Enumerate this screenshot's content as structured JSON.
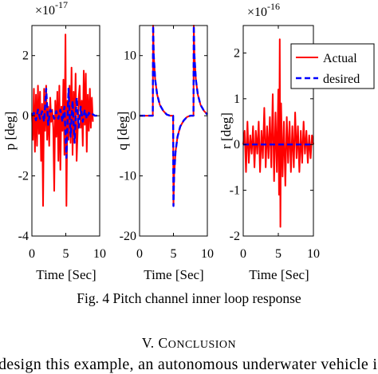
{
  "caption": "Fig. 4 Pitch channel inner loop response",
  "section_heading": {
    "number": "V.",
    "first_letter": "C",
    "rest": "ONCLUSION"
  },
  "body_fragment": "design this example, an autonomous underwater vehicle is",
  "colors": {
    "actual": "#ff0000",
    "desired": "#0000ff",
    "axes": "#000000"
  },
  "chart_data": [
    {
      "type": "line",
      "xlabel": "Time  [Sec]",
      "ylabel": "p [deg]",
      "exponent_label": "×10",
      "exponent_power": "-17",
      "xlim": [
        0,
        10
      ],
      "ylim": [
        -4,
        3
      ],
      "xticks": [
        0,
        5,
        10
      ],
      "yticks": [
        -4,
        -2,
        0,
        2
      ],
      "ytick_labels": [
        "-4",
        "-2",
        "0",
        "2"
      ],
      "grid": false,
      "series": [
        {
          "name": "Actual",
          "color": "#ff0000",
          "style": "solid",
          "x": [
            0,
            0.15,
            0.3,
            0.45,
            0.6,
            0.75,
            0.9,
            1.05,
            1.2,
            1.35,
            1.5,
            1.65,
            1.8,
            1.95,
            2.1,
            2.25,
            2.4,
            2.55,
            2.7,
            2.85,
            3.0,
            3.15,
            3.3,
            3.45,
            3.6,
            3.75,
            3.9,
            4.05,
            4.2,
            4.35,
            4.5,
            4.65,
            4.8,
            4.95,
            5.1,
            5.25,
            5.4,
            5.55,
            5.7,
            5.85,
            6.0,
            6.15,
            6.3,
            6.45,
            6.6,
            6.75,
            6.9,
            7.05,
            7.2,
            7.35,
            7.5,
            7.65,
            7.8,
            7.95,
            8.1,
            8.25,
            8.4,
            8.55,
            8.7,
            8.85,
            9.0
          ],
          "y": [
            0.1,
            -0.8,
            0.9,
            -1.2,
            0.7,
            -1.0,
            1.0,
            -0.6,
            0.8,
            -1.5,
            0.4,
            -3.0,
            0.9,
            -0.5,
            1.0,
            -0.8,
            0.3,
            -1.0,
            0.6,
            -0.2,
            0.2,
            -0.4,
            -2.5,
            0.5,
            -0.7,
            0.8,
            -1.5,
            1.0,
            -1.8,
            0.3,
            -0.5,
            1.2,
            -1.3,
            2.7,
            -3.0,
            0.5,
            -0.8,
            1.0,
            -0.9,
            1.6,
            -1.3,
            0.8,
            -0.7,
            1.4,
            -1.5,
            -0.5,
            0.6,
            1.0,
            -0.4,
            0.5,
            -1.0,
            1.5,
            -0.3,
            1.4,
            -1.2,
            0.7,
            -0.5,
            0.9,
            -0.4,
            0.6,
            -0.2
          ]
        },
        {
          "name": "desired",
          "color": "#0000ff",
          "style": "dashed",
          "x": [
            0,
            0.3,
            0.6,
            0.9,
            1.2,
            1.5,
            1.8,
            2.1,
            2.4,
            2.7,
            3.0,
            3.3,
            3.6,
            3.9,
            4.2,
            4.5,
            4.8,
            5.1,
            5.4,
            5.7,
            6.0,
            6.3,
            6.6,
            6.9,
            7.2,
            7.5,
            7.8,
            8.1,
            8.4,
            8.7,
            9.0,
            9.3,
            9.6,
            9.9
          ],
          "y": [
            0,
            0.1,
            -0.15,
            0.2,
            -0.1,
            0.15,
            -0.2,
            0.9,
            -0.3,
            0.2,
            0.1,
            -0.1,
            0.15,
            -0.1,
            0.2,
            -0.2,
            0.3,
            -1.4,
            0.9,
            -0.7,
            0.5,
            -0.9,
            0.6,
            -0.4,
            0.3,
            -0.2,
            0.2,
            -0.1,
            0.1,
            0,
            0.05,
            0,
            0,
            0
          ]
        }
      ]
    },
    {
      "type": "line",
      "xlabel": "Time  [Sec]",
      "ylabel": "q [deg]",
      "xlim": [
        0,
        10
      ],
      "ylim": [
        -20,
        15
      ],
      "xticks": [
        0,
        5,
        10
      ],
      "yticks": [
        -20,
        -10,
        0,
        10
      ],
      "ytick_labels": [
        "-20",
        "-10",
        "0",
        "10"
      ],
      "grid": false,
      "series": [
        {
          "name": "Actual",
          "color": "#ff0000",
          "style": "solid",
          "x": [
            0,
            1.95,
            2.0,
            2.1,
            2.3,
            2.6,
            3.0,
            3.5,
            4.0,
            4.5,
            4.95,
            5.0,
            5.1,
            5.3,
            5.6,
            6.0,
            6.5,
            7.0,
            7.5,
            7.95,
            8.0,
            8.1,
            8.3,
            8.6,
            9.0,
            9.5,
            10
          ],
          "y": [
            0,
            0,
            15,
            10,
            6,
            3.5,
            1.8,
            0.8,
            0.2,
            0,
            0,
            -15,
            -10,
            -6,
            -3.5,
            -1.8,
            -0.8,
            -0.2,
            0,
            0,
            15,
            10,
            6,
            3.5,
            1.8,
            0.8,
            0.2
          ]
        },
        {
          "name": "desired",
          "color": "#0000ff",
          "style": "dashed",
          "x": [
            0,
            1.95,
            2.0,
            2.1,
            2.3,
            2.6,
            3.0,
            3.5,
            4.0,
            4.5,
            4.95,
            5.0,
            5.1,
            5.3,
            5.6,
            6.0,
            6.5,
            7.0,
            7.5,
            7.95,
            8.0,
            8.1,
            8.3,
            8.6,
            9.0,
            9.5,
            10
          ],
          "y": [
            0,
            0,
            15,
            10,
            6,
            3.5,
            1.8,
            0.8,
            0.2,
            0,
            0,
            -15,
            -10,
            -6,
            -3.5,
            -1.8,
            -0.8,
            -0.2,
            0,
            0,
            15,
            10,
            6,
            3.5,
            1.8,
            0.8,
            0.2
          ]
        }
      ]
    },
    {
      "type": "line",
      "xlabel": "Time  [Sec]",
      "ylabel": "r [deg]",
      "exponent_label": "×10",
      "exponent_power": "-16",
      "xlim": [
        0,
        10
      ],
      "ylim": [
        -2,
        2.6
      ],
      "xticks": [
        0,
        5,
        10
      ],
      "yticks": [
        -2,
        -1,
        0,
        1,
        2
      ],
      "ytick_labels": [
        "-2",
        "-1",
        "0",
        "1",
        "2"
      ],
      "grid": false,
      "legend": {
        "position": "top-right",
        "entries": [
          "Actual",
          "desired"
        ]
      },
      "series": [
        {
          "name": "Actual",
          "color": "#ff0000",
          "style": "solid",
          "x": [
            0,
            0.2,
            0.4,
            0.6,
            0.8,
            1.0,
            1.2,
            1.4,
            1.6,
            1.8,
            2.0,
            2.2,
            2.4,
            2.6,
            2.8,
            3.0,
            3.2,
            3.4,
            3.6,
            3.8,
            4.0,
            4.2,
            4.4,
            4.6,
            4.8,
            5.0,
            5.1,
            5.2,
            5.3,
            5.4,
            5.6,
            5.8,
            6.0,
            6.2,
            6.4,
            6.6,
            6.8,
            7.0,
            7.2,
            7.4,
            7.6,
            7.8,
            8.0,
            8.2,
            8.4,
            8.6,
            8.8,
            9.0,
            9.2,
            9.4,
            9.6,
            9.8,
            10
          ],
          "y": [
            0,
            0.3,
            -0.6,
            0.5,
            -0.4,
            0.2,
            -0.2,
            0.4,
            -0.5,
            0.3,
            -0.2,
            0.5,
            -0.6,
            0.3,
            -0.3,
            0.8,
            -0.5,
            0.4,
            -0.3,
            0.6,
            -0.5,
            1.1,
            -0.8,
            0.7,
            -0.6,
            1.2,
            -1.1,
            2.3,
            -1.8,
            0.9,
            -0.7,
            0.5,
            -0.9,
            0.6,
            -0.4,
            0.5,
            -0.6,
            0.4,
            -0.5,
            0.7,
            -0.3,
            0.4,
            -0.6,
            0.3,
            -0.4,
            0.5,
            -0.2,
            0.3,
            -0.4,
            0.2,
            -0.3,
            0.2,
            0
          ]
        },
        {
          "name": "desired",
          "color": "#0000ff",
          "style": "dashed",
          "x": [
            0,
            10
          ],
          "y": [
            0,
            0
          ]
        }
      ]
    }
  ]
}
